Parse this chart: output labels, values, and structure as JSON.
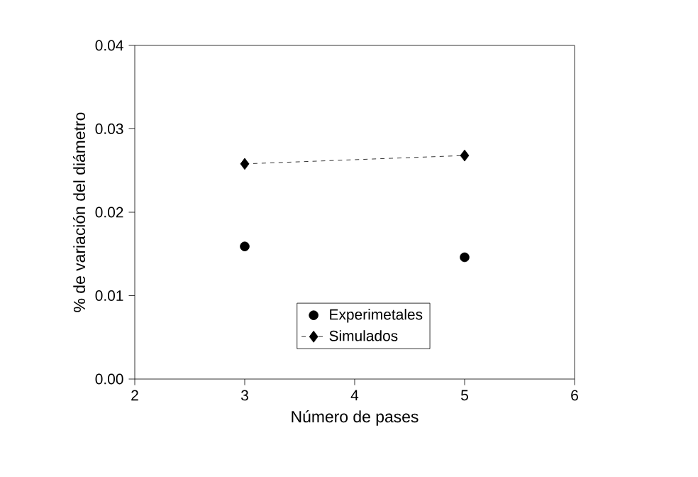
{
  "chart_data": {
    "type": "scatter",
    "xlabel": "Número de pases",
    "ylabel": "% de variación del diámetro",
    "xlim": [
      2,
      6
    ],
    "xticks": [
      2,
      3,
      4,
      5,
      6
    ],
    "ylim": [
      0,
      0.04
    ],
    "yticks": [
      {
        "value": 0,
        "label": "0.00"
      },
      {
        "value": 0.01,
        "label": "0.01"
      },
      {
        "value": 0.02,
        "label": "0.02"
      },
      {
        "value": 0.03,
        "label": "0.03"
      },
      {
        "value": 0.04,
        "label": "0.04"
      }
    ],
    "x": [
      3,
      5
    ],
    "series": [
      {
        "name": "Experimetales",
        "color": "#000000",
        "marker": "circle",
        "values": [
          0.0159,
          0.0146
        ]
      },
      {
        "name": "Simulados",
        "type": "line",
        "color": "#000000",
        "marker": "diamond",
        "line_style": "dashed",
        "values": [
          0.0258,
          0.0268
        ]
      }
    ],
    "legend": "bottom",
    "grid": false
  }
}
